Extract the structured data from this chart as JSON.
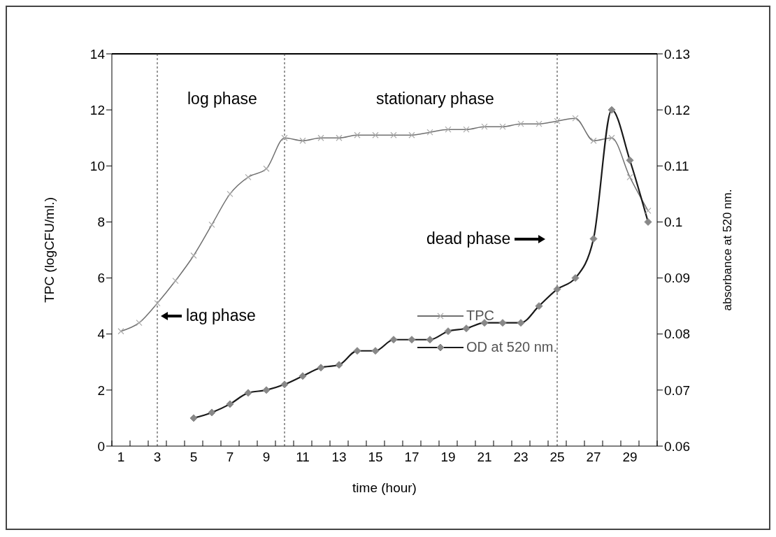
{
  "chart_data": {
    "type": "line",
    "xlabel": "time (hour)",
    "ylabel": "TPC (logCFU/ml.)",
    "y2label": "absorbance at 520 nm.",
    "x": [
      1,
      2,
      3,
      4,
      5,
      6,
      7,
      8,
      9,
      10,
      11,
      12,
      13,
      14,
      15,
      16,
      17,
      18,
      19,
      20,
      21,
      22,
      23,
      24,
      25,
      26,
      27,
      28,
      29,
      30
    ],
    "series": [
      {
        "name": "TPC",
        "color": "#707070",
        "marker": "cross",
        "values": [
          4.1,
          4.4,
          5.1,
          5.9,
          6.8,
          7.9,
          9.0,
          9.6,
          9.9,
          11.0,
          10.9,
          11.0,
          11.0,
          11.1,
          11.1,
          11.1,
          11.1,
          11.2,
          11.3,
          11.3,
          11.4,
          11.4,
          11.5,
          11.5,
          11.6,
          11.7,
          10.9,
          11.0,
          9.6,
          8.4
        ]
      },
      {
        "name": "OD at 520 nm.",
        "color": "#1a1a1a",
        "marker": "diamond",
        "axis": "y2",
        "values": [
          null,
          null,
          null,
          null,
          0.065,
          0.066,
          0.0675,
          0.0695,
          0.07,
          0.071,
          0.0725,
          0.074,
          0.0745,
          0.077,
          0.077,
          0.079,
          0.079,
          0.079,
          0.0805,
          0.081,
          0.082,
          0.082,
          0.082,
          0.085,
          0.088,
          0.09,
          0.097,
          0.12,
          0.111,
          0.1
        ]
      }
    ],
    "xlim": [
      0.5,
      30.5
    ],
    "xticks": [
      {
        "value": 0.5,
        "label": null
      },
      1,
      {
        "value": 1.5,
        "label": null
      },
      {
        "value": 2.5,
        "label": null
      },
      3,
      {
        "value": 3.5,
        "label": null
      },
      {
        "value": 4.5,
        "label": null
      },
      5,
      {
        "value": 5.5,
        "label": null
      },
      {
        "value": 6.5,
        "label": null
      },
      7,
      {
        "value": 7.5,
        "label": null
      },
      {
        "value": 8.5,
        "label": null
      },
      9,
      {
        "value": 9.5,
        "label": null
      },
      {
        "value": 10.5,
        "label": null
      },
      11,
      {
        "value": 11.5,
        "label": null
      },
      {
        "value": 12.5,
        "label": null
      },
      13,
      {
        "value": 13.5,
        "label": null
      },
      {
        "value": 14.5,
        "label": null
      },
      15,
      {
        "value": 15.5,
        "label": null
      },
      {
        "value": 16.5,
        "label": null
      },
      17,
      {
        "value": 17.5,
        "label": null
      },
      {
        "value": 18.5,
        "label": null
      },
      19,
      {
        "value": 19.5,
        "label": null
      },
      {
        "value": 20.5,
        "label": null
      },
      21,
      {
        "value": 21.5,
        "label": null
      },
      {
        "value": 22.5,
        "label": null
      },
      23,
      {
        "value": 23.5,
        "label": null
      },
      {
        "value": 24.5,
        "label": null
      },
      25,
      {
        "value": 25.5,
        "label": null
      },
      {
        "value": 26.5,
        "label": null
      },
      27,
      {
        "value": 27.5,
        "label": null
      },
      {
        "value": 28.5,
        "label": null
      },
      29,
      {
        "value": 29.5,
        "label": null
      },
      {
        "value": 30.5,
        "label": null
      }
    ],
    "ylim": [
      0,
      14
    ],
    "yticks": [
      0,
      2,
      4,
      6,
      8,
      10,
      12,
      14
    ],
    "y2lim": [
      0.06,
      0.13
    ],
    "y2ticks": [
      0.06,
      0.07,
      0.08,
      0.09,
      0.1,
      0.11,
      0.12,
      0.13
    ],
    "ref_lines": [
      {
        "axis": "x",
        "value": 3,
        "line_style": "dotted",
        "color": "#333333"
      },
      {
        "axis": "x",
        "value": 10,
        "line_style": "dotted",
        "color": "#333333"
      },
      {
        "axis": "x",
        "value": 25,
        "line_style": "dotted",
        "color": "#333333"
      }
    ],
    "annotations": [
      "log phase",
      "stationary phase",
      "lag phase",
      "dead phase"
    ],
    "grid": false,
    "legend": "bottom",
    "line_style": "solid"
  }
}
